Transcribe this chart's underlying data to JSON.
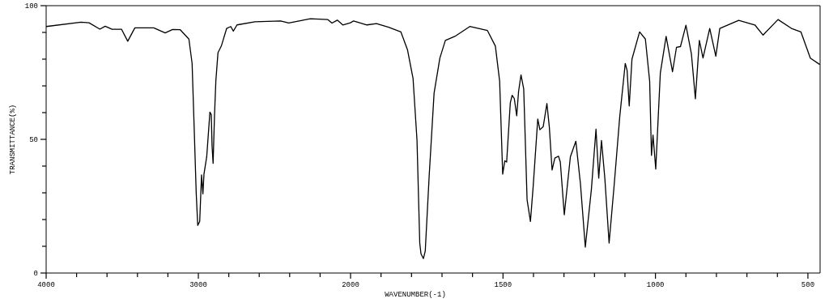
{
  "chart_data": [
    {
      "type": "line",
      "ylabel": "TRANSMITTANCE(%)",
      "xlim": [
        4000,
        2000
      ],
      "ylim": [
        0,
        100
      ],
      "xticks": [
        4000,
        {
          "value": 3800,
          "label": null
        },
        {
          "value": 3600,
          "label": null
        },
        {
          "value": 3400,
          "label": null
        },
        {
          "value": 3200,
          "label": null
        },
        3000,
        {
          "value": 2800,
          "label": null
        },
        {
          "value": 2600,
          "label": null
        },
        {
          "value": 2400,
          "label": null
        },
        {
          "value": 2200,
          "label": null
        },
        2000
      ],
      "yticks": [
        0,
        {
          "value": 10,
          "label": null
        },
        {
          "value": 20,
          "label": null
        },
        {
          "value": 30,
          "label": null
        },
        {
          "value": 40,
          "label": null
        },
        50,
        {
          "value": 60,
          "label": null
        },
        {
          "value": 70,
          "label": null
        },
        {
          "value": 80,
          "label": null
        },
        {
          "value": 90,
          "label": null
        },
        100
      ],
      "line_style": "solid",
      "series": [
        {
          "color": "#000000",
          "x": [
            4000,
            3771,
            3718,
            3647,
            3612,
            3567,
            3505,
            3464,
            3417,
            3293,
            3218,
            3169,
            3119,
            3062,
            3041,
            3027,
            3014,
            3004,
            2991,
            2979,
            2970,
            2963,
            2945,
            2924,
            2915,
            2910,
            2903,
            2894,
            2885,
            2871,
            2849,
            2814,
            2787,
            2770,
            2746,
            2628,
            2459,
            2406,
            2264,
            2149,
            2122,
            2087,
            2051,
            2000
          ],
          "values": [
            92.2,
            93.8,
            93.6,
            91.2,
            92.3,
            91.2,
            91.2,
            86.7,
            91.7,
            91.7,
            89.8,
            91.1,
            91,
            87.5,
            78.4,
            53.6,
            29.9,
            17.8,
            19.3,
            36.7,
            29.6,
            37,
            43.5,
            60.2,
            59.2,
            47.6,
            41,
            58.6,
            71.8,
            82.4,
            84.9,
            91.5,
            92.2,
            90.5,
            92.8,
            94,
            94.3,
            93.5,
            95.1,
            94.8,
            93.5,
            94.6,
            92.8,
            93.6
          ]
        }
      ]
    },
    {
      "type": "line",
      "xlabel": "WAVENUMBER(-1)",
      "xlim": [
        2000,
        460
      ],
      "ylim": [
        0,
        100
      ],
      "tick_labels": "x",
      "xticks": [
        {
          "value": 1900,
          "label": null
        },
        {
          "value": 1800,
          "label": null
        },
        {
          "value": 1700,
          "label": null
        },
        {
          "value": 1600,
          "label": null
        },
        1500,
        {
          "value": 1400,
          "label": null
        },
        {
          "value": 1300,
          "label": null
        },
        {
          "value": 1200,
          "label": null
        },
        {
          "value": 1100,
          "label": null
        },
        1000,
        {
          "value": 900,
          "label": null
        },
        {
          "value": 800,
          "label": null
        },
        {
          "value": 700,
          "label": null
        },
        {
          "value": 600,
          "label": null
        },
        500
      ],
      "line_style": "solid",
      "series": [
        {
          "color": "#000000",
          "x": [
            2000,
            1990,
            1946,
            1915,
            1875,
            1835,
            1813,
            1795,
            1782,
            1773,
            1769,
            1761,
            1755,
            1742,
            1726,
            1707,
            1689,
            1658,
            1609,
            1551,
            1525,
            1511,
            1501,
            1494,
            1488,
            1476,
            1470,
            1463,
            1455,
            1449,
            1441,
            1432,
            1421,
            1410,
            1401,
            1386,
            1379,
            1368,
            1356,
            1348,
            1339,
            1330,
            1318,
            1312,
            1299,
            1279,
            1261,
            1246,
            1230,
            1210,
            1195,
            1186,
            1177,
            1166,
            1152,
            1135,
            1117,
            1099,
            1093,
            1086,
            1077,
            1052,
            1033,
            1019,
            1013,
            1008,
            999,
            984,
            965,
            944,
            931,
            918,
            900,
            882,
            869,
            856,
            844,
            822,
            802,
            789,
            727,
            674,
            647,
            598,
            554,
            523,
            492,
            461
          ],
          "values": [
            93.6,
            94.3,
            92.8,
            93.3,
            91.9,
            90.2,
            83.4,
            72.8,
            49.6,
            11.2,
            7.2,
            5.4,
            8.2,
            36.5,
            67.3,
            80.4,
            87,
            88.5,
            92.2,
            90.7,
            84.9,
            71.8,
            37,
            42,
            41.5,
            63.7,
            66.5,
            65.3,
            58.8,
            67.8,
            74.1,
            68.8,
            27.4,
            19.3,
            32.4,
            57.6,
            53.6,
            54.8,
            63.4,
            54.6,
            38.5,
            43,
            43.7,
            41.5,
            21.8,
            43.5,
            49.3,
            33.4,
            9.7,
            31.4,
            53.8,
            35.5,
            49.6,
            35.5,
            11.2,
            33.4,
            58.6,
            78.4,
            75.8,
            62.5,
            80,
            90.2,
            87.5,
            71.8,
            44,
            51.6,
            38.9,
            74.8,
            88.5,
            75.3,
            84.4,
            84.7,
            92.7,
            81.9,
            65.2,
            87,
            80.4,
            91.5,
            81.1,
            91.5,
            94.5,
            92.8,
            89,
            94.8,
            91.5,
            90.2,
            80.4,
            78
          ]
        }
      ]
    }
  ]
}
